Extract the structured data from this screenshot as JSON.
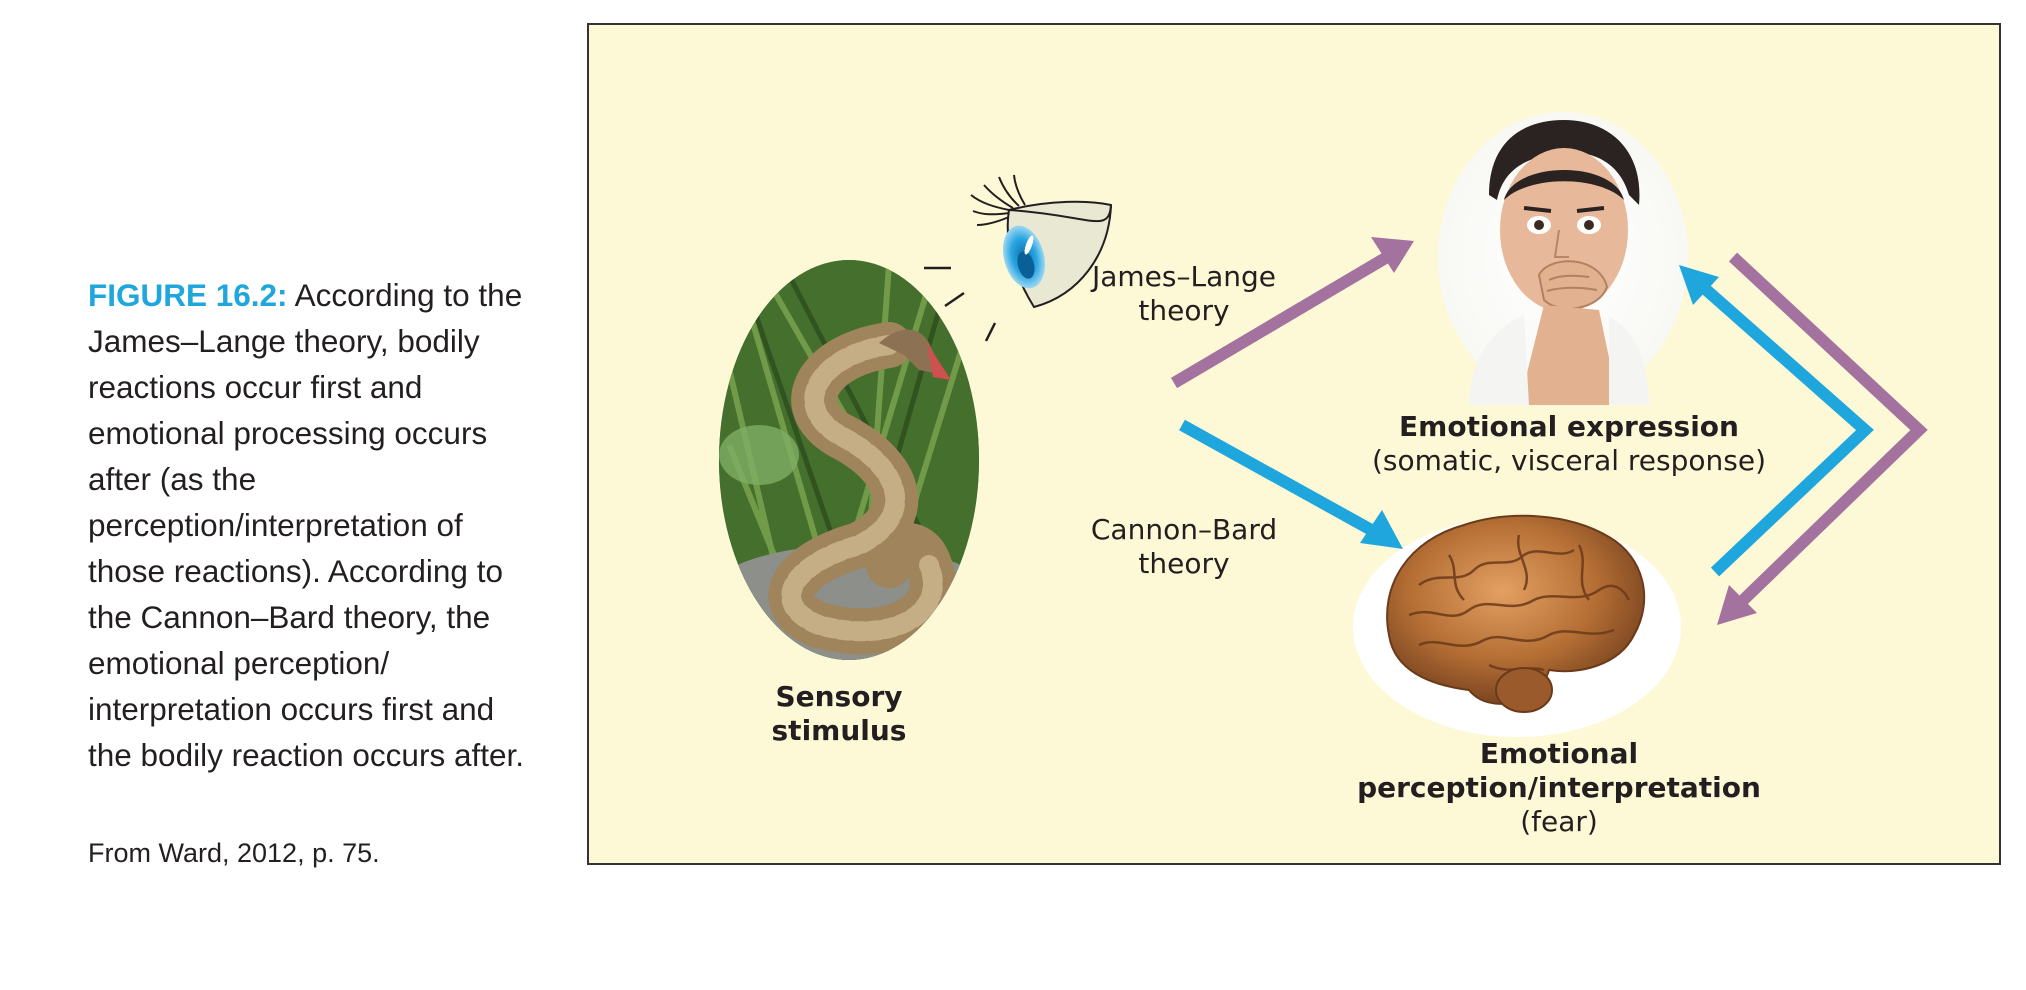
{
  "caption": {
    "figure_label": "FIGURE 16.2:",
    "text": " According to the James–Lange theory, bodily reactions occur first and emotional processing occurs after (as the perception/interpretation of those reactions). According to the Cannon–Bard theory, the emotional perception/ interpretation occurs first and the bodily reaction occurs after.",
    "credit": "From Ward, 2012, p. 75."
  },
  "diagram": {
    "stimulus_label_line1": "Sensory",
    "stimulus_label_line2": "stimulus",
    "james_lange_line1": "James–Lange",
    "james_lange_line2": "theory",
    "cannon_bard_line1": "Cannon–Bard",
    "cannon_bard_line2": "theory",
    "expression_title": "Emotional expression",
    "expression_sub": "(somatic, visceral response)",
    "perception_title": "Emotional perception/interpretation",
    "perception_sub": "(fear)"
  },
  "colors": {
    "caption_accent": "#1ea6dd",
    "panel_background": "#fdf9d7",
    "james_lange_arrow": "#a4729e",
    "cannon_bard_arrow": "#1ea6dd"
  },
  "icons": [
    "snake-photo",
    "eye-icon",
    "surprised-face-photo",
    "brain-photo"
  ]
}
